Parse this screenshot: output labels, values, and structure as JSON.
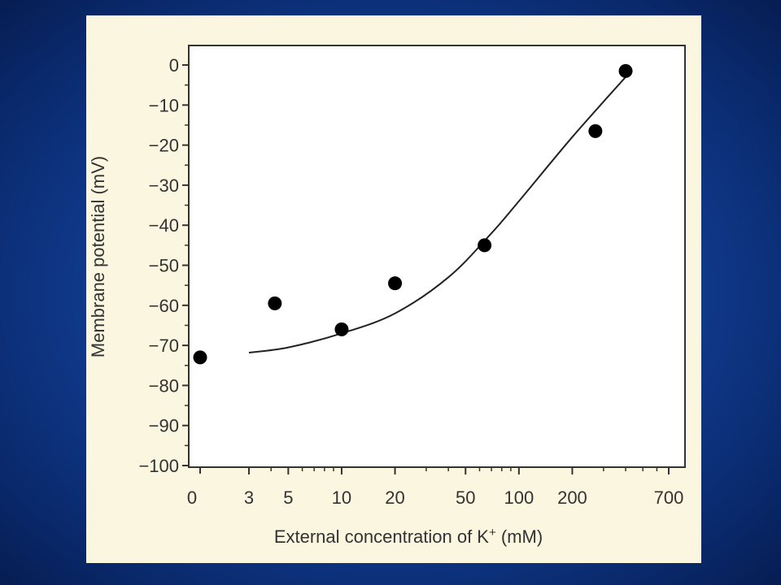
{
  "chart_data": {
    "type": "scatter",
    "title": "",
    "xlabel": "External concentration of K",
    "xlabel_superscript": "+",
    "xlabel_unit": " (mM)",
    "ylabel": "Membrane potential (mV)",
    "x_scale": "log",
    "ylim": [
      -100,
      0
    ],
    "y_ticks": [
      0,
      -10,
      -20,
      -30,
      -40,
      -50,
      -60,
      -70,
      -80,
      -90,
      -100
    ],
    "y_tick_labels": [
      "0",
      "−10",
      "−20",
      "−30",
      "−40",
      "−50",
      "−60",
      "−70",
      "−80",
      "−90",
      "−100"
    ],
    "x_ticks": [
      3,
      5,
      10,
      20,
      50,
      100,
      200,
      700
    ],
    "x_tick_labels": [
      "3",
      "5",
      "10",
      "20",
      "50",
      "100",
      "200",
      "700"
    ],
    "x_zero_label": "0",
    "grid": false,
    "points": [
      {
        "x": 0,
        "y": -73
      },
      {
        "x": 4.2,
        "y": -59.5
      },
      {
        "x": 10,
        "y": -66
      },
      {
        "x": 20,
        "y": -54.5
      },
      {
        "x": 64,
        "y": -45
      },
      {
        "x": 270,
        "y": -16.5
      },
      {
        "x": 400,
        "y": -1.5
      }
    ],
    "fit_curve": {
      "x": [
        3,
        5,
        10,
        20,
        40,
        70,
        100,
        200,
        400
      ],
      "y": [
        -71.8,
        -70.5,
        -67,
        -62,
        -53,
        -42,
        -34,
        -18,
        -3
      ]
    },
    "colors": {
      "points": "#000000",
      "curve": "#222222",
      "axis": "#333333",
      "panel": "#faf6e0"
    }
  }
}
